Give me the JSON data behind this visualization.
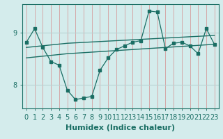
{
  "title": "",
  "xlabel": "Humidex (Indice chaleur)",
  "bg_color": "#d4ecec",
  "line_color": "#1a6e64",
  "hgrid_color": "#b8d4d4",
  "vgrid_color": "#d4a8a8",
  "line1_x": [
    0,
    1,
    2,
    3,
    4,
    5,
    6,
    7,
    8,
    9,
    10,
    11,
    12,
    13,
    14,
    15,
    16,
    17,
    18,
    19,
    20,
    21,
    22,
    23
  ],
  "line1_y": [
    8.82,
    9.08,
    8.72,
    8.45,
    8.38,
    7.9,
    7.72,
    7.75,
    7.78,
    8.28,
    8.52,
    8.68,
    8.75,
    8.82,
    8.85,
    9.42,
    9.4,
    8.7,
    8.8,
    8.82,
    8.75,
    8.6,
    9.08,
    8.78
  ],
  "line2_x": [
    0,
    5,
    23
  ],
  "line2_y": [
    8.72,
    8.8,
    8.95
  ],
  "line3_x": [
    0,
    5,
    23
  ],
  "line3_y": [
    8.52,
    8.6,
    8.78
  ],
  "xlim": [
    -0.5,
    23.5
  ],
  "ylim": [
    7.55,
    9.55
  ],
  "yticks": [
    8,
    9
  ],
  "xticks": [
    0,
    1,
    2,
    3,
    4,
    5,
    6,
    7,
    8,
    9,
    10,
    11,
    12,
    13,
    14,
    15,
    16,
    17,
    18,
    19,
    20,
    21,
    22,
    23
  ],
  "xlabel_fontsize": 8,
  "tick_fontsize": 7,
  "marker_size": 2.5
}
